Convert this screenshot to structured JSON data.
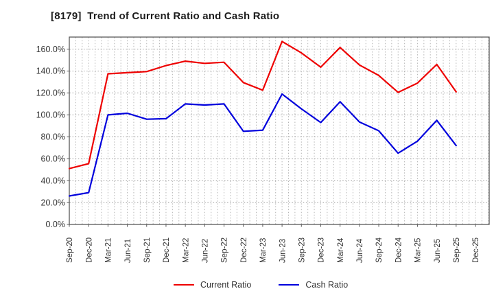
{
  "chart_data": {
    "type": "line",
    "title": "[8179]  Trend of Current Ratio and Cash Ratio",
    "xlabel": "",
    "ylabel": "",
    "categories": [
      "Sep-20",
      "Dec-20",
      "Mar-21",
      "Jun-21",
      "Sep-21",
      "Dec-21",
      "Mar-22",
      "Jun-22",
      "Sep-22",
      "Dec-22",
      "Mar-23",
      "Jun-23",
      "Sep-23",
      "Dec-23",
      "Mar-24",
      "Jun-24",
      "Sep-24",
      "Dec-24",
      "Mar-25",
      "Jun-25",
      "Sep-25",
      "Dec-25"
    ],
    "y_ticks": [
      0,
      20,
      40,
      60,
      80,
      100,
      120,
      140,
      160
    ],
    "y_tick_labels": [
      "0.0%",
      "20.0%",
      "40.0%",
      "60.0%",
      "80.0%",
      "100.0%",
      "120.0%",
      "140.0%",
      "160.0%"
    ],
    "ylim": [
      0,
      171
    ],
    "grid": "dotted gray; horizontal lines at 20% steps, vertical dotted minor lines monthly",
    "legend_position": "bottom-center",
    "series": [
      {
        "name": "Current Ratio",
        "color": "#ee0000",
        "values": [
          51,
          55.5,
          137.5,
          138.5,
          139.5,
          145,
          149,
          147,
          148,
          129.5,
          122.5,
          167,
          156.5,
          143.5,
          161.5,
          145.5,
          136,
          120.5,
          129,
          146,
          121,
          null
        ]
      },
      {
        "name": "Cash Ratio",
        "color": "#0000dd",
        "values": [
          26,
          29,
          100,
          101.5,
          96,
          96.5,
          110,
          109,
          110,
          85,
          86,
          119,
          105.5,
          93,
          112,
          93.5,
          85.5,
          65,
          76,
          95,
          72,
          null
        ]
      }
    ]
  }
}
